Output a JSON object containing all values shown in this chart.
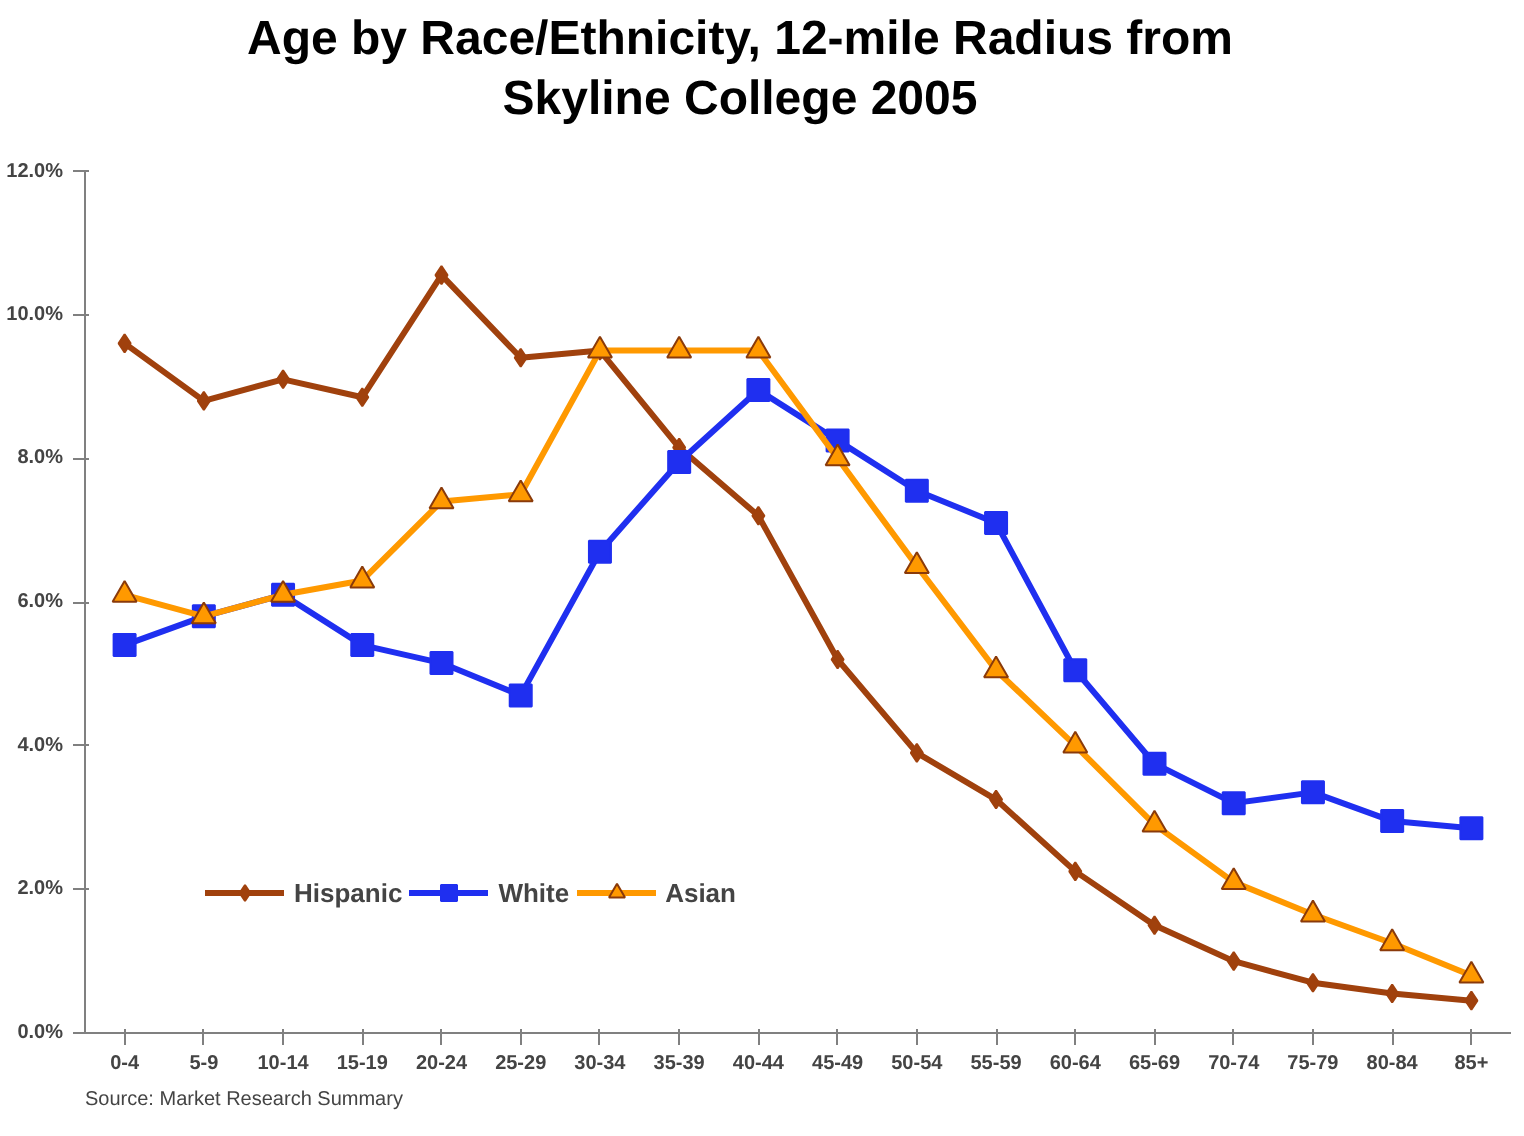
{
  "chart_data": {
    "type": "line",
    "title": "Age by Race/Ethnicity, 12-mile Radius from Skyline College 2005",
    "categories": [
      "0-4",
      "5-9",
      "10-14",
      "15-19",
      "20-24",
      "25-29",
      "30-34",
      "35-39",
      "40-44",
      "45-49",
      "50-54",
      "55-59",
      "60-64",
      "65-69",
      "70-74",
      "75-79",
      "80-84",
      "85+"
    ],
    "series": [
      {
        "name": "Hispanic",
        "color": "#a0410d",
        "marker": "diamond",
        "values": [
          9.6,
          8.8,
          9.1,
          8.85,
          10.55,
          9.4,
          9.5,
          8.15,
          7.2,
          5.2,
          3.9,
          3.25,
          2.25,
          1.5,
          1.0,
          0.7,
          0.55,
          0.45
        ]
      },
      {
        "name": "White",
        "color": "#1f2ff0",
        "marker": "square",
        "values": [
          5.4,
          5.8,
          6.1,
          5.4,
          5.15,
          4.7,
          6.7,
          7.95,
          8.95,
          8.25,
          7.55,
          7.1,
          5.05,
          3.75,
          3.2,
          3.35,
          2.95,
          2.85
        ]
      },
      {
        "name": "Asian",
        "color": "#ff9900",
        "marker": "triangle",
        "values": [
          6.1,
          5.8,
          6.1,
          6.3,
          7.4,
          7.5,
          9.5,
          9.5,
          9.5,
          8.0,
          6.5,
          5.05,
          4.0,
          2.9,
          2.1,
          1.65,
          1.25,
          0.8
        ]
      }
    ],
    "ylim": [
      0,
      12
    ],
    "yticks": [
      {
        "value": 0,
        "label": "0.0%"
      },
      {
        "value": 2,
        "label": "2.0%"
      },
      {
        "value": 4,
        "label": "4.0%"
      },
      {
        "value": 6,
        "label": "6.0%"
      },
      {
        "value": 8,
        "label": "8.0%"
      },
      {
        "value": 10,
        "label": "10.0%"
      },
      {
        "value": 12,
        "label": "12.0%"
      }
    ],
    "grid": false,
    "legend": "bottom left",
    "line_style": "solid",
    "annotations": [
      "Source: Market Research Summary"
    ]
  }
}
